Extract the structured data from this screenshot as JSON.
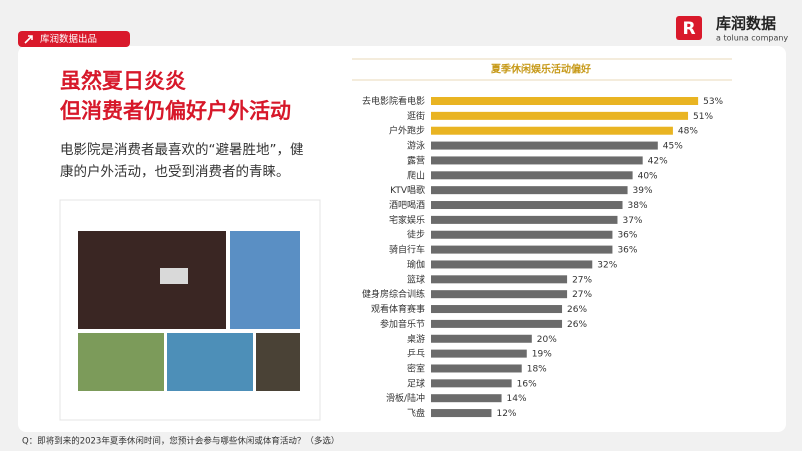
{
  "header": {
    "tag": "库润数据出品",
    "logo_name": "库润数据",
    "logo_sub": "a toluna company"
  },
  "headline": [
    "虽然夏日炎炎",
    "但消费者仍偏好户外活动"
  ],
  "body": [
    "电影院是消费者最喜欢的“避暑胜地”，健",
    "康的户外活动，也受到消费者的青睐。"
  ],
  "chart_data": {
    "type": "bar",
    "orientation": "horizontal",
    "title": "夏季休闲娱乐活动偏好",
    "categories": [
      "去电影院看电影",
      "逛街",
      "户外跑步",
      "游泳",
      "露营",
      "爬山",
      "KTV唱歌",
      "酒吧喝酒",
      "宅家娱乐",
      "徒步",
      "骑自行车",
      "瑜伽",
      "篮球",
      "健身房综合训练",
      "观看体育赛事",
      "参加音乐节",
      "桌游",
      "乒乓",
      "密室",
      "足球",
      "滑板/陆冲",
      "飞盘"
    ],
    "values": [
      53,
      51,
      48,
      45,
      42,
      40,
      39,
      38,
      37,
      36,
      36,
      32,
      27,
      27,
      26,
      26,
      20,
      19,
      18,
      16,
      14,
      12
    ],
    "value_labels": [
      "53%",
      "51%",
      "48%",
      "45%",
      "42%",
      "40%",
      "39%",
      "38%",
      "37%",
      "36%",
      "36%",
      "32%",
      "27%",
      "27%",
      "26%",
      "26%",
      "20%",
      "19%",
      "18%",
      "16%",
      "14%",
      "12%"
    ],
    "colors": [
      "#e9b422",
      "#e9b422",
      "#e9b422",
      "#6b6b6b",
      "#6b6b6b",
      "#6b6b6b",
      "#6b6b6b",
      "#6b6b6b",
      "#6b6b6b",
      "#6b6b6b",
      "#6b6b6b",
      "#6b6b6b",
      "#6b6b6b",
      "#6b6b6b",
      "#6b6b6b",
      "#6b6b6b",
      "#6b6b6b",
      "#6b6b6b",
      "#6b6b6b",
      "#6b6b6b",
      "#6b6b6b",
      "#6b6b6b"
    ]
  },
  "footer": "Q：即将到来的2023年夏季休闲时间，您预计会参与哪些休闲或体育活动？（多选）"
}
